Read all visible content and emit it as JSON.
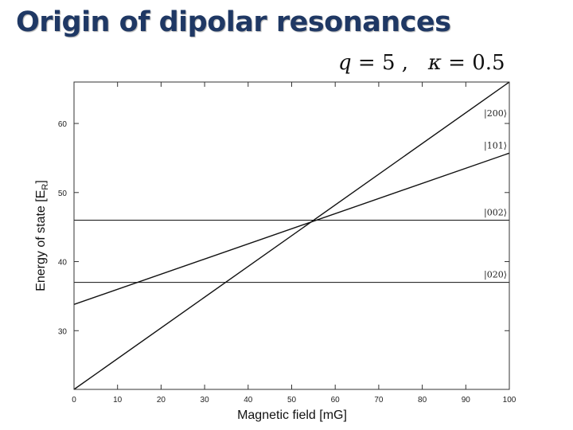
{
  "slide": {
    "title": "Origin of dipolar resonances",
    "params": {
      "q_symbol": "q",
      "q_value": "= 5 ,",
      "kappa_symbol": "κ",
      "kappa_value": "= 0.5"
    }
  },
  "chart_data": {
    "type": "line",
    "title": "",
    "xlabel": "Magnetic field [mG]",
    "ylabel": "Energy of state [E",
    "ylabel_sub": "R",
    "ylabel_end": "]",
    "xlim": [
      0,
      100
    ],
    "ylim": [
      21.5,
      66
    ],
    "xticks": [
      0,
      10,
      20,
      30,
      40,
      50,
      60,
      70,
      80,
      90,
      100
    ],
    "xtick_labels": [
      "0",
      "10",
      "20",
      "30",
      "40",
      "50",
      "60",
      "70",
      "80",
      "90",
      "100"
    ],
    "yticks": [
      30,
      40,
      50,
      60
    ],
    "ytick_labels": [
      "30",
      "40",
      "50",
      "60"
    ],
    "grid": false,
    "series": [
      {
        "name": "|200⟩",
        "x": [
          0,
          100
        ],
        "y": [
          21.5,
          66.0
        ]
      },
      {
        "name": "|101⟩",
        "x": [
          0,
          100
        ],
        "y": [
          33.8,
          55.7
        ]
      },
      {
        "name": "|002⟩",
        "x": [
          0,
          100
        ],
        "y": [
          46.0,
          46.0
        ]
      },
      {
        "name": "|020⟩",
        "x": [
          0,
          100
        ],
        "y": [
          37.0,
          37.0
        ]
      }
    ],
    "colors": {
      "line": "#111111",
      "axis": "#333333"
    }
  }
}
